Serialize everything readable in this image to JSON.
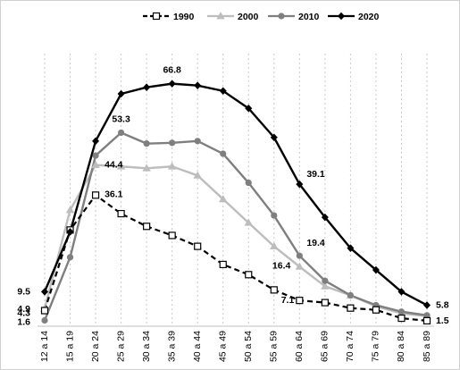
{
  "chart_data": {
    "type": "line",
    "title": "",
    "xlabel": "",
    "ylabel": "",
    "ylim": [
      0,
      80
    ],
    "grid": "vertical dashed",
    "legend": "top",
    "categories": [
      "12 a 14",
      "15 a 19",
      "20 a 24",
      "25 a 29",
      "30 a 34",
      "35 a 39",
      "40 a 44",
      "45 a 49",
      "50 a 54",
      "55 a 59",
      "60 a 64",
      "65 a 69",
      "70 a 74",
      "75 a 79",
      "80 a 84",
      "85 a 89"
    ],
    "series": [
      {
        "name": "1990",
        "color": "#000000",
        "dash": true,
        "marker": "square-open",
        "values": [
          4.3,
          26.5,
          36.1,
          31.0,
          27.5,
          25.0,
          22.0,
          17.0,
          14.2,
          10.0,
          7.1,
          6.5,
          5.0,
          4.5,
          2.2,
          1.5
        ]
      },
      {
        "name": "2000",
        "color": "#bdbdbd",
        "dash": false,
        "marker": "triangle",
        "values": [
          4.9,
          32.0,
          44.4,
          44.0,
          43.5,
          44.0,
          41.5,
          35.0,
          28.5,
          22.0,
          16.4,
          11.0,
          8.5,
          5.5,
          3.5,
          2.8
        ]
      },
      {
        "name": "2010",
        "color": "#7f7f7f",
        "dash": false,
        "marker": "circle",
        "values": [
          1.6,
          19.0,
          47.0,
          53.3,
          50.3,
          50.5,
          51.0,
          47.5,
          39.5,
          30.5,
          19.4,
          12.5,
          8.5,
          5.8,
          4.0,
          3.0
        ]
      },
      {
        "name": "2020",
        "color": "#000000",
        "dash": false,
        "marker": "diamond",
        "values": [
          9.5,
          26.0,
          51.0,
          64.0,
          65.8,
          66.8,
          66.3,
          64.8,
          60.0,
          52.0,
          39.1,
          30.0,
          21.5,
          15.5,
          9.5,
          5.8
        ]
      }
    ],
    "data_labels": [
      {
        "text": "9.5",
        "series": "2020",
        "index": 0
      },
      {
        "text": "4.9",
        "series": "2000",
        "index": 0
      },
      {
        "text": "4.3",
        "series": "1990",
        "index": 0
      },
      {
        "text": "1.6",
        "series": "2010",
        "index": 0
      },
      {
        "text": "36.1",
        "series": "1990",
        "index": 2
      },
      {
        "text": "44.4",
        "series": "2000",
        "index": 2
      },
      {
        "text": "53.3",
        "series": "2010",
        "index": 3
      },
      {
        "text": "66.8",
        "series": "2020",
        "index": 5
      },
      {
        "text": "39.1",
        "series": "2020",
        "index": 10
      },
      {
        "text": "19.4",
        "series": "2010",
        "index": 10
      },
      {
        "text": "16.4",
        "series": "2000",
        "index": 10
      },
      {
        "text": "7.1",
        "series": "1990",
        "index": 10
      },
      {
        "text": "5.8",
        "series": "2020",
        "index": 15
      },
      {
        "text": "1.5",
        "series": "1990",
        "index": 15
      }
    ]
  }
}
